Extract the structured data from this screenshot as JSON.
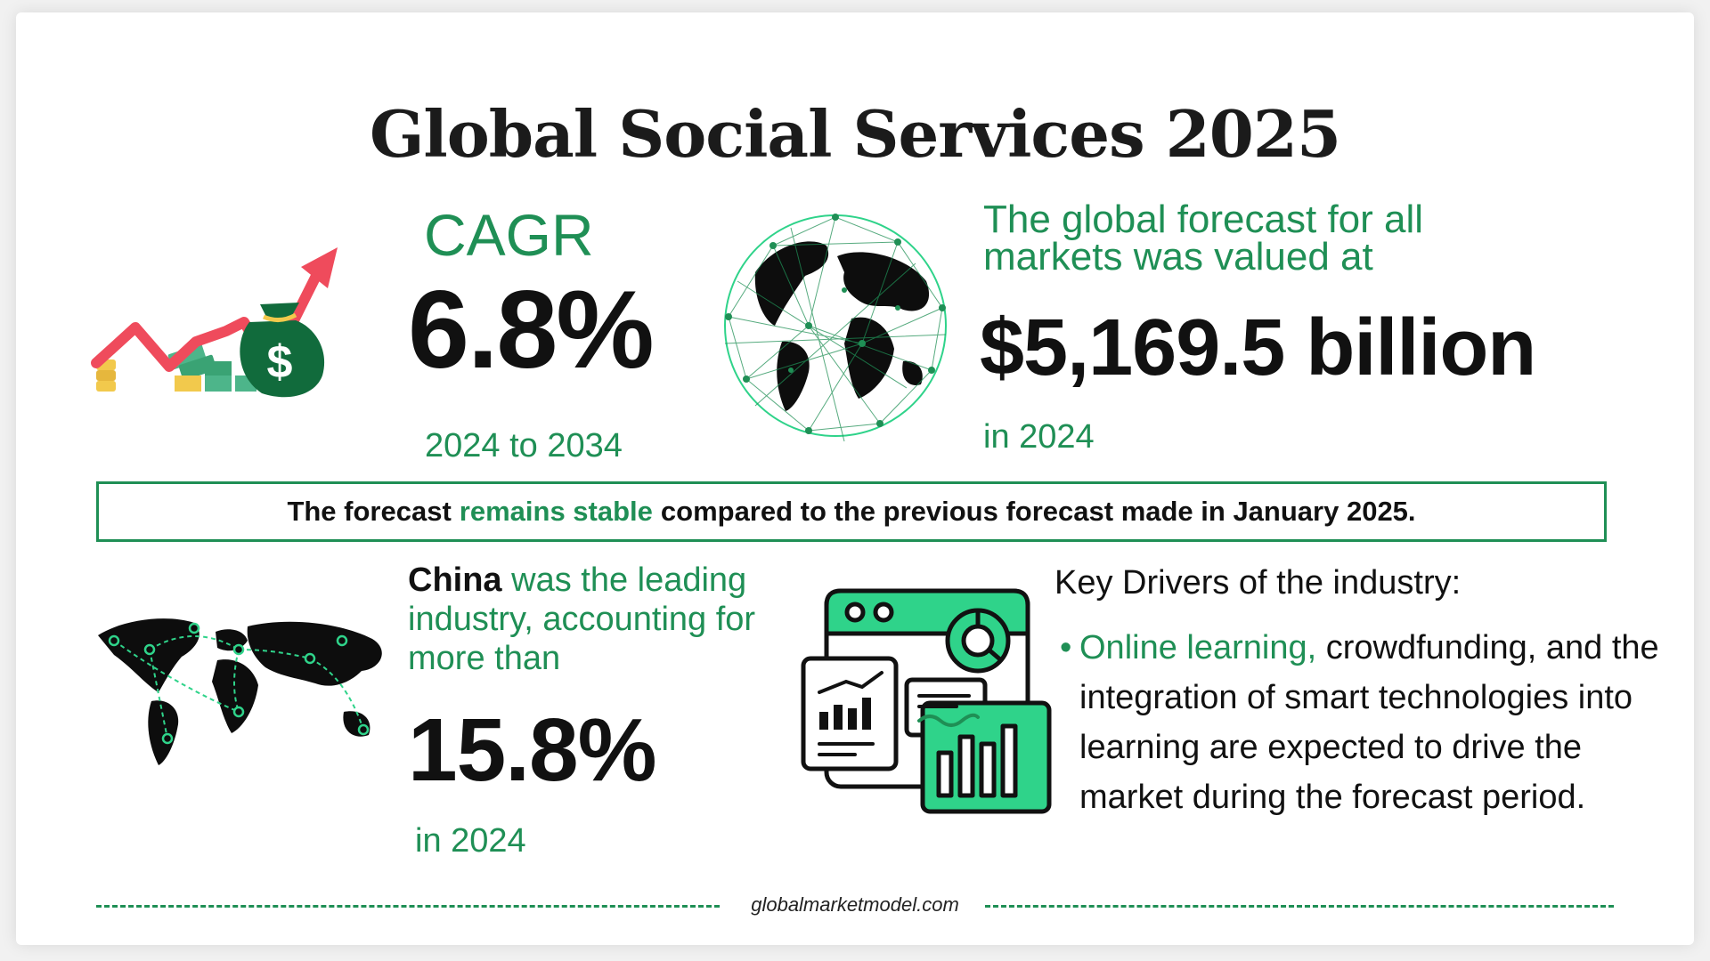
{
  "title": "Global Social Services 2025",
  "cagr": {
    "label": "CAGR",
    "value": "6.8%",
    "period": "2024 to 2034"
  },
  "forecast": {
    "text": "The global forecast for all markets was valued at",
    "value": "$5,169.5 billion",
    "year": "in 2024"
  },
  "banner": {
    "before": "The forecast",
    "highlight": "remains stable",
    "after": "compared to the previous forecast made in January 2025."
  },
  "china": {
    "name": "China",
    "text": "was the leading industry, accounting for more than",
    "value": "15.8%",
    "year": "in 2024"
  },
  "drivers": {
    "heading": "Key Drivers of the industry:",
    "highlight": "Online learning,",
    "text": "crowdfunding, and the integration of smart technologies into learning are expected to drive the market during the forecast period."
  },
  "footer": {
    "site": "globalmarketmodel.com"
  },
  "icons": {
    "growth": "money-bag-growth-icon",
    "globe": "network-globe-icon",
    "map": "world-map-icon",
    "dashboard": "analytics-dashboard-icon"
  },
  "colors": {
    "accent": "#1f8f55",
    "accent_light": "#2fd38a",
    "arrow": "#ef4b5c",
    "text": "#111111"
  }
}
